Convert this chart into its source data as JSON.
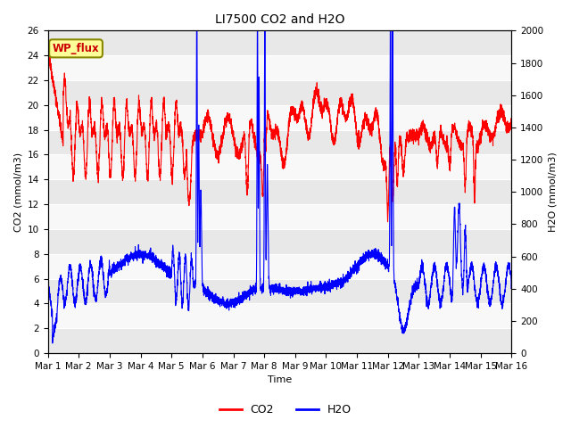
{
  "title": "LI7500 CO2 and H2O",
  "xlabel": "Time",
  "ylabel_left": "CO2 (mmol/m3)",
  "ylabel_right": "H2O (mmol/m3)",
  "annotation": "WP_flux",
  "co2_ylim": [
    0,
    26
  ],
  "h2o_ylim": [
    0,
    2000
  ],
  "co2_color": "#FF0000",
  "h2o_color": "#0000FF",
  "co2_linewidth": 0.8,
  "h2o_linewidth": 0.8,
  "background_color": "#FFFFFF",
  "plot_bg_color": "#E8E8E8",
  "grid_color": "#FFFFFF",
  "title_fontsize": 10,
  "axis_fontsize": 8,
  "tick_fontsize": 7.5,
  "legend_fontsize": 9,
  "n_days": 15,
  "co2_h2o_scale": 76.923,
  "annotation_facecolor": "#FFFF99",
  "annotation_edgecolor": "#888800",
  "annotation_textcolor": "#CC0000"
}
